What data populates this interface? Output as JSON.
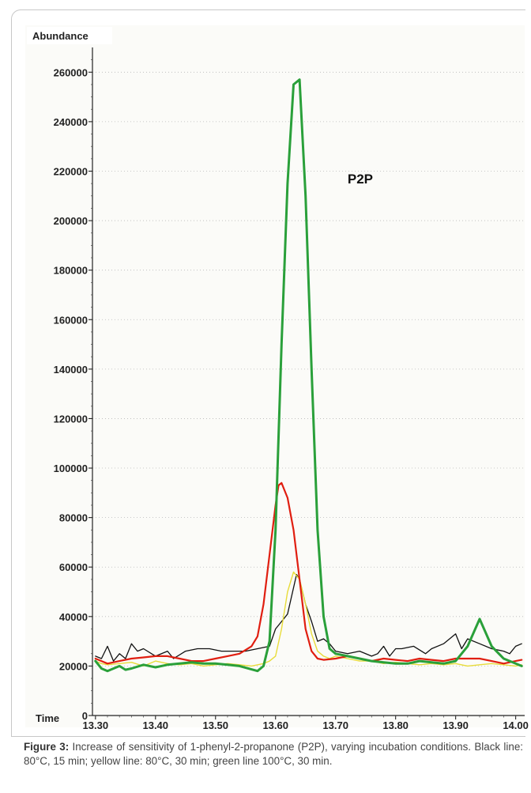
{
  "chart_data": {
    "type": "line",
    "ylabel": "Abundance",
    "xlabel": "Time",
    "ylim": [
      0,
      270000
    ],
    "xlim": [
      13.295,
      14.015
    ],
    "yticks": [
      0,
      20000,
      40000,
      60000,
      80000,
      100000,
      120000,
      140000,
      160000,
      180000,
      200000,
      220000,
      240000,
      260000
    ],
    "ytick_labels": [
      "0",
      "20000",
      "40000",
      "60000",
      "80000",
      "100000",
      "120000",
      "140000",
      "160000",
      "180000",
      "200000",
      "220000",
      "240000",
      "260000"
    ],
    "xticks": [
      13.3,
      13.4,
      13.5,
      13.6,
      13.7,
      13.8,
      13.9,
      14.0
    ],
    "xtick_labels": [
      "13.30",
      "13.40",
      "13.50",
      "13.60",
      "13.70",
      "13.80",
      "13.90",
      "14.00"
    ],
    "grid": true,
    "annotation": {
      "text": "P2P",
      "x": 13.72,
      "y": 215000
    },
    "series": [
      {
        "color": "#111111",
        "width": 1.3,
        "x": [
          13.3,
          13.31,
          13.32,
          13.33,
          13.34,
          13.35,
          13.36,
          13.37,
          13.38,
          13.4,
          13.42,
          13.43,
          13.45,
          13.47,
          13.49,
          13.51,
          13.53,
          13.55,
          13.57,
          13.59,
          13.6,
          13.61,
          13.62,
          13.635,
          13.64,
          13.65,
          13.66,
          13.67,
          13.68,
          13.69,
          13.7,
          13.72,
          13.74,
          13.76,
          13.77,
          13.78,
          13.79,
          13.8,
          13.81,
          13.83,
          13.85,
          13.86,
          13.88,
          13.9,
          13.91,
          13.92,
          13.94,
          13.96,
          13.98,
          13.99,
          14.0,
          14.01
        ],
        "y": [
          24000,
          23000,
          28000,
          22000,
          25000,
          23000,
          29000,
          26000,
          27000,
          24000,
          26000,
          23000,
          26000,
          27000,
          27000,
          26000,
          26000,
          26000,
          27000,
          28000,
          35000,
          38000,
          41000,
          57000,
          55000,
          45000,
          38000,
          30000,
          31000,
          29000,
          26000,
          25000,
          26000,
          24000,
          25000,
          28000,
          24000,
          27000,
          27000,
          28000,
          25000,
          27000,
          29000,
          33000,
          27000,
          31000,
          29000,
          27000,
          26000,
          25000,
          28000,
          29000
        ]
      },
      {
        "color": "#e8dc3a",
        "width": 1.4,
        "x": [
          13.3,
          13.31,
          13.32,
          13.34,
          13.36,
          13.38,
          13.4,
          13.42,
          13.44,
          13.46,
          13.48,
          13.5,
          13.52,
          13.54,
          13.56,
          13.58,
          13.59,
          13.6,
          13.61,
          13.62,
          13.63,
          13.64,
          13.65,
          13.66,
          13.67,
          13.68,
          13.69,
          13.7,
          13.72,
          13.74,
          13.76,
          13.78,
          13.8,
          13.82,
          13.84,
          13.86,
          13.88,
          13.9,
          13.92,
          13.94,
          13.96,
          13.98,
          14.0,
          14.01
        ],
        "y": [
          22000,
          21000,
          20500,
          21000,
          21500,
          20000,
          22000,
          21000,
          20500,
          21000,
          20000,
          20500,
          21000,
          20500,
          20000,
          21000,
          22000,
          24000,
          35000,
          50000,
          58000,
          55000,
          45000,
          33000,
          26000,
          24000,
          23000,
          24000,
          23000,
          22000,
          22000,
          21000,
          21500,
          21000,
          20500,
          21000,
          20500,
          21000,
          20000,
          20500,
          21000,
          20500,
          20000,
          20500
        ]
      },
      {
        "color": "#e01e10",
        "width": 2.2,
        "x": [
          13.3,
          13.31,
          13.32,
          13.34,
          13.36,
          13.38,
          13.4,
          13.42,
          13.44,
          13.46,
          13.48,
          13.5,
          13.52,
          13.54,
          13.56,
          13.57,
          13.58,
          13.59,
          13.6,
          13.605,
          13.61,
          13.62,
          13.63,
          13.64,
          13.65,
          13.66,
          13.67,
          13.68,
          13.7,
          13.72,
          13.74,
          13.76,
          13.78,
          13.8,
          13.82,
          13.84,
          13.86,
          13.88,
          13.9,
          13.92,
          13.94,
          13.96,
          13.98,
          14.0,
          14.01
        ],
        "y": [
          23000,
          22000,
          21000,
          22000,
          23000,
          23500,
          24000,
          24000,
          23000,
          22000,
          22000,
          23000,
          24000,
          25000,
          28000,
          32000,
          45000,
          65000,
          85000,
          93000,
          94000,
          88000,
          75000,
          55000,
          35000,
          26000,
          23000,
          22500,
          23000,
          24000,
          23000,
          22000,
          23000,
          22500,
          22000,
          23000,
          22500,
          22000,
          23000,
          23000,
          23000,
          22000,
          21000,
          22000,
          22500
        ]
      },
      {
        "color": "#2aa03a",
        "width": 3.0,
        "x": [
          13.3,
          13.31,
          13.32,
          13.34,
          13.35,
          13.36,
          13.38,
          13.4,
          13.42,
          13.44,
          13.46,
          13.48,
          13.5,
          13.52,
          13.54,
          13.57,
          13.58,
          13.59,
          13.6,
          13.61,
          13.62,
          13.63,
          13.64,
          13.65,
          13.66,
          13.67,
          13.68,
          13.69,
          13.7,
          13.72,
          13.74,
          13.76,
          13.78,
          13.8,
          13.82,
          13.84,
          13.86,
          13.88,
          13.9,
          13.92,
          13.94,
          13.96,
          13.98,
          14.0,
          14.01
        ],
        "y": [
          22000,
          19000,
          18000,
          20000,
          18500,
          19000,
          20500,
          19500,
          20500,
          21000,
          21500,
          21000,
          21000,
          20500,
          20000,
          18000,
          20000,
          30000,
          75000,
          150000,
          215000,
          255000,
          257000,
          210000,
          140000,
          75000,
          40000,
          27000,
          25000,
          24000,
          23000,
          22000,
          21500,
          21000,
          21000,
          22000,
          21500,
          21000,
          22000,
          28000,
          39000,
          28000,
          23000,
          21000,
          20000
        ]
      }
    ]
  },
  "caption": {
    "label": "Figure 3:",
    "text": " Increase of sensitivity of 1-phenyl-2-propanone (P2P), varying incubation conditions. Black line: 80°C, 15 min; yellow line: 80°C, 30 min; green line 100°C, 30 min."
  }
}
